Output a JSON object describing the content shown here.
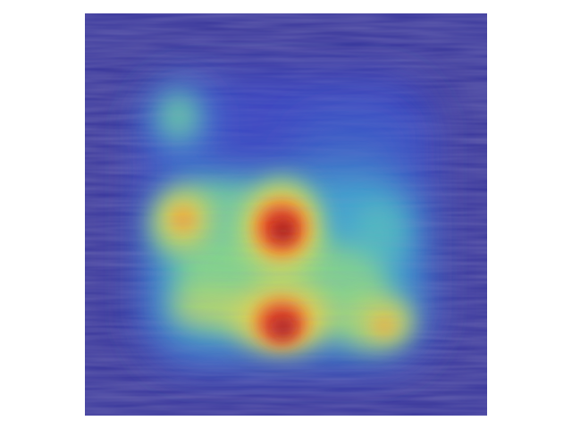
{
  "image": {
    "kind": "heatmap-overlay-on-textured-surface",
    "background_color": "#ffffff",
    "base_color": "#36329a",
    "colormap": [
      "#2b2ea8",
      "#3b58d8",
      "#3aa0e0",
      "#4cd2c0",
      "#9fe07a",
      "#e8e04a",
      "#f59a2c",
      "#e33b1f",
      "#9a1a14"
    ],
    "hotspots": [
      {
        "name": "hotspot-top-left",
        "intensity": 0.45
      },
      {
        "name": "hotspot-mid-left",
        "intensity": 0.62
      },
      {
        "name": "hotspot-center-upper",
        "intensity": 1.0
      },
      {
        "name": "hotspot-center-lower",
        "intensity": 0.98
      },
      {
        "name": "hotspot-mid-right",
        "intensity": 0.42
      },
      {
        "name": "hotspot-lower-right",
        "intensity": 0.55
      }
    ]
  }
}
